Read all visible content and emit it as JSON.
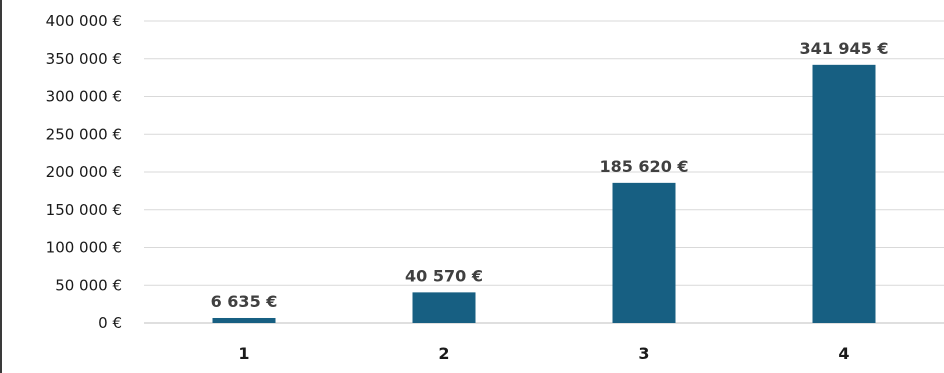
{
  "chart_data": {
    "type": "bar",
    "title": "",
    "xlabel": "",
    "ylabel": "",
    "categories": [
      "1",
      "2",
      "3",
      "4"
    ],
    "values": [
      6635,
      40570,
      185620,
      341945
    ],
    "data_labels": [
      "6 635 €",
      "40 570 €",
      "185 620 €",
      "341 945 €"
    ],
    "ylim": [
      0,
      400000
    ],
    "y_ticks": [
      0,
      50000,
      100000,
      150000,
      200000,
      250000,
      300000,
      350000,
      400000
    ],
    "y_tick_labels": [
      "0 €",
      "50 000 €",
      "100 000 €",
      "150 000 €",
      "200 000 €",
      "250 000 €",
      "300 000 €",
      "350 000 €",
      "400 000 €"
    ],
    "grid": true,
    "legend": "none",
    "bar_color": "#175f82"
  }
}
